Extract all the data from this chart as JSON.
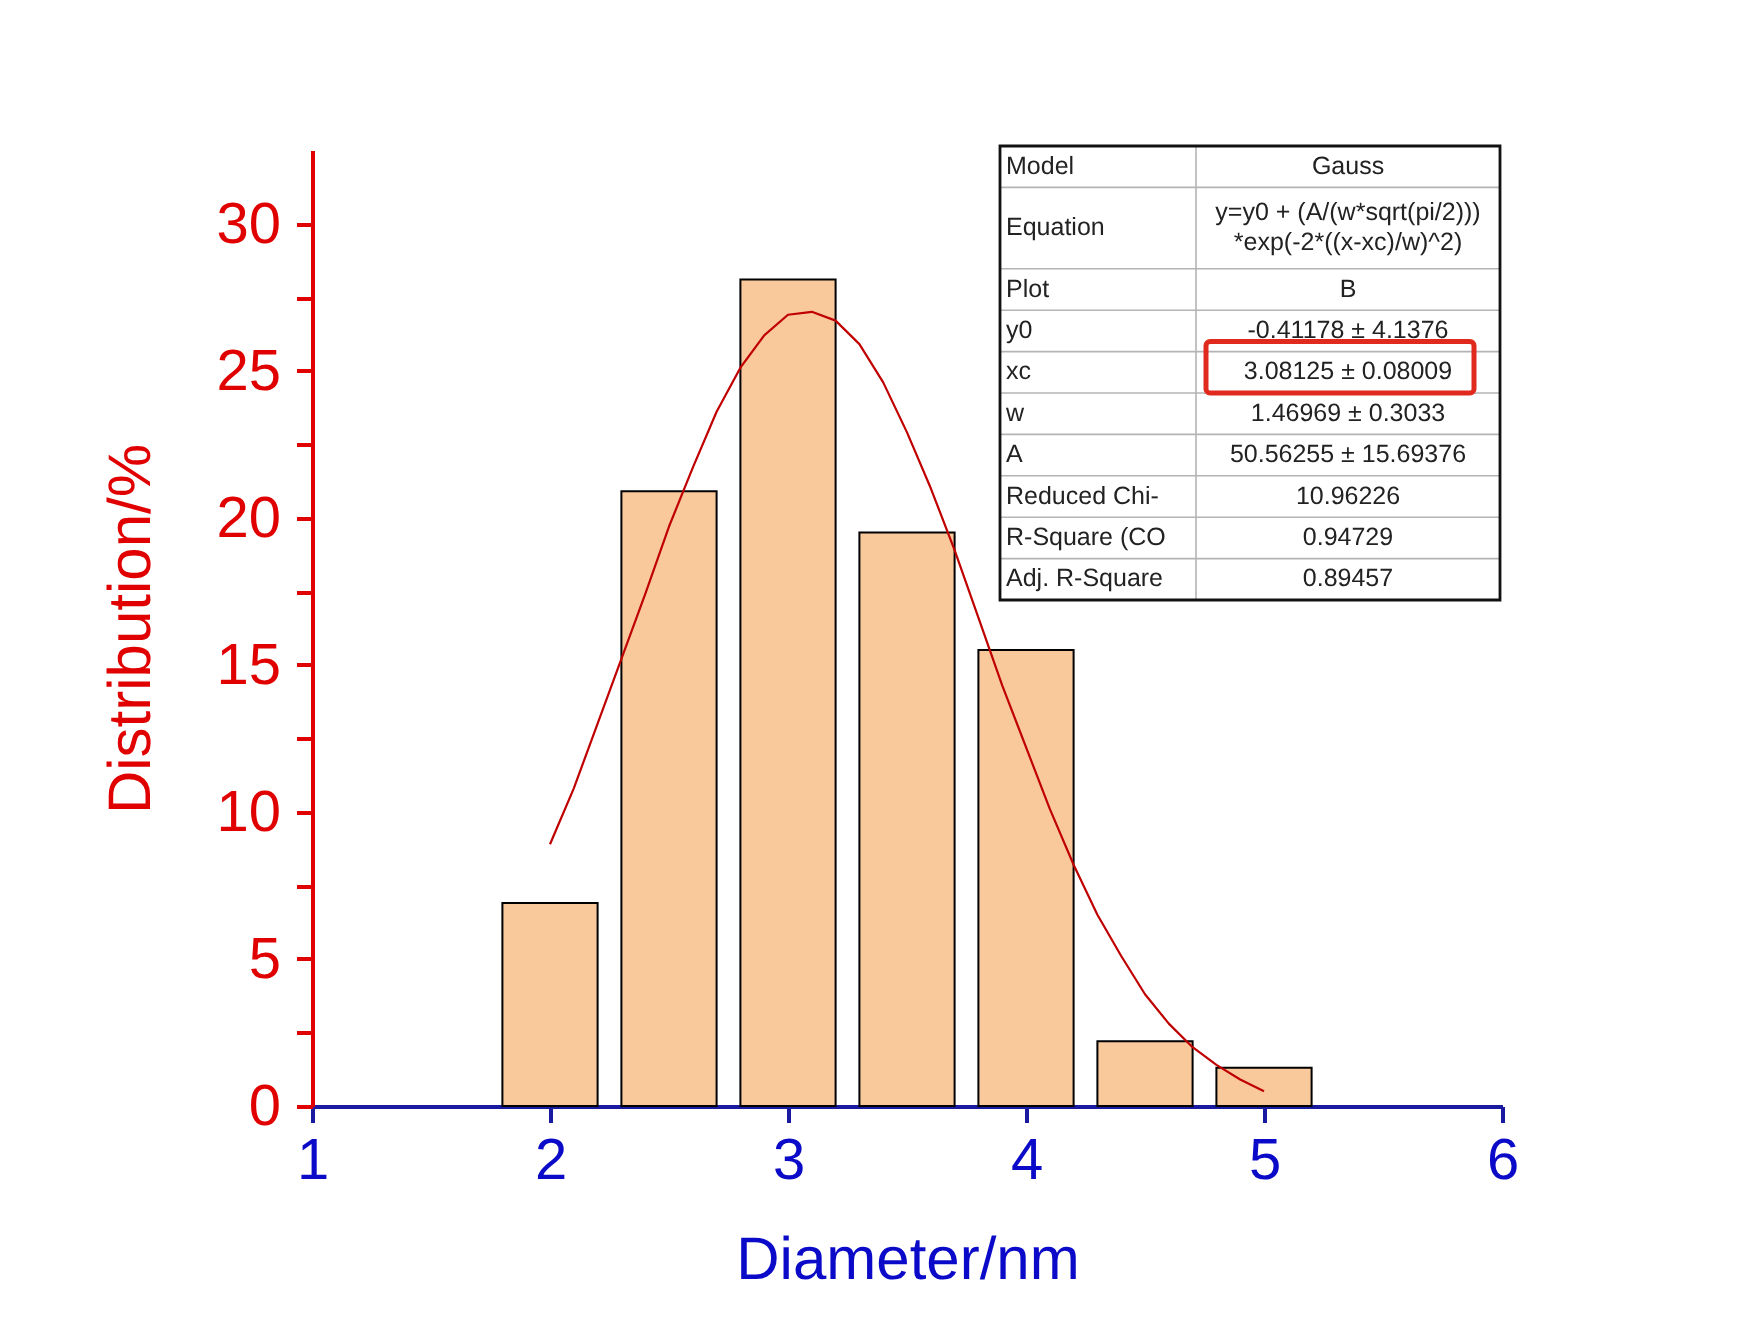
{
  "chart_data": {
    "type": "bar",
    "xlabel": "Diameter/nm",
    "ylabel": "Distribution/%",
    "x": [
      2,
      2.5,
      3,
      3.5,
      4,
      4.5,
      5
    ],
    "series": [
      {
        "color": "#f9c89b",
        "values": [
          6.9,
          20.9,
          28.1,
          19.5,
          15.5,
          2.2,
          1.3
        ]
      },
      {
        "type": "line",
        "color": "#c00000",
        "x": [
          2,
          2.1,
          2.2,
          2.3,
          2.4,
          2.5,
          2.6,
          2.7,
          2.8,
          2.9,
          3,
          3.1,
          3.2,
          3.3,
          3.4,
          3.5,
          3.6,
          3.7,
          3.8,
          3.9,
          4,
          4.1,
          4.2,
          4.3,
          4.4,
          4.5,
          4.6,
          4.7,
          4.8,
          4.9,
          5
        ],
        "values": [
          8.9,
          10.8,
          13.0,
          15.2,
          17.4,
          19.7,
          21.7,
          23.6,
          25.1,
          26.2,
          26.9,
          27.0,
          26.7,
          25.9,
          24.6,
          22.9,
          21.0,
          18.9,
          16.6,
          14.3,
          12.2,
          10.1,
          8.2,
          6.5,
          5.1,
          3.8,
          2.8,
          2.0,
          1.4,
          0.9,
          0.5
        ]
      }
    ],
    "xlim": [
      1,
      6
    ],
    "ylim": [
      0,
      32.5
    ],
    "xticks": [
      1,
      2,
      3,
      4,
      5,
      6
    ],
    "yticks": [
      0,
      {
        "value": 2.5,
        "label": null
      },
      5,
      {
        "value": 7.5,
        "label": null
      },
      10,
      {
        "value": 12.5,
        "label": null
      },
      15,
      {
        "value": 17.5,
        "label": null
      },
      20,
      {
        "value": 22.5,
        "label": null
      },
      25,
      {
        "value": 27.5,
        "label": null
      },
      30
    ],
    "annotations": [
      "Model",
      "Gauss",
      "Equation",
      "y=y0 + (A/(w*sqrt(pi/2)))\n*exp(-2*((x-xc)/w)^2)",
      "Plot",
      "B",
      "y0",
      "-0.41178 ± 4.1376",
      "xc",
      "3.08125 ± 0.08009",
      "w",
      "1.46969 ± 0.3033",
      "A",
      "50.56255 ± 15.69376",
      "Reduced Chi-",
      "10.96226",
      "R-Square (CO",
      "0.94729",
      "Adj. R-Square",
      "0.89457"
    ]
  }
}
